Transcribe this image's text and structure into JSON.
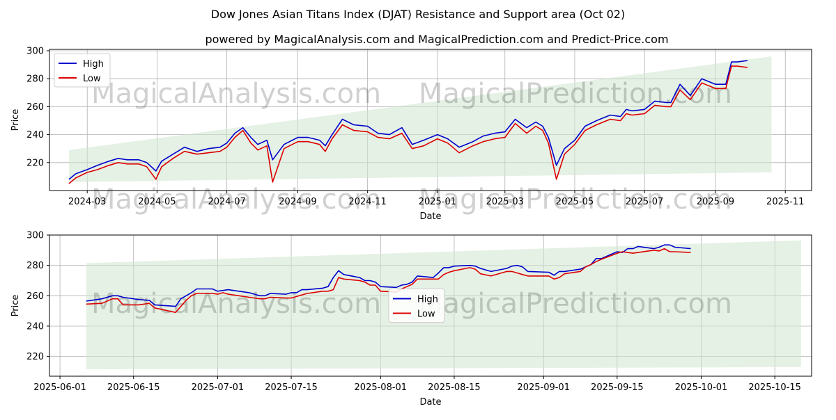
{
  "title": "Dow Jones Asian Titans Index (DJAT) Resistance and Support area (Oct 02)",
  "subtitle": "powered by MagicalAnalysis.com and MagicalPrediction.com and Predict-Price.com",
  "watermarks": [
    "MagicalAnalysis.com",
    "MagicalPrediction.com"
  ],
  "colors": {
    "high": "#0000cc",
    "low": "#dd0000",
    "band": "#cfe6cf",
    "grid": "#b0b0b0"
  },
  "chart_data": [
    {
      "type": "line",
      "xlabel": "Date",
      "ylabel": "Price",
      "x_ticks": [
        "2024-03",
        "2024-05",
        "2024-07",
        "2024-09",
        "2024-11",
        "2025-01",
        "2025-03",
        "2025-05",
        "2025-07",
        "2025-09",
        "2025-11"
      ],
      "x_range": [
        "2024-01-28",
        "2025-11-24"
      ],
      "y_ticks": [
        220,
        240,
        260,
        280,
        300
      ],
      "ylim": [
        200,
        301
      ],
      "grid": true,
      "legend": "top-left",
      "band": {
        "x": [
          "2024-02-14",
          "2025-10-20"
        ],
        "upper": [
          229,
          296
        ],
        "lower": [
          206,
          213
        ]
      },
      "x": [
        "2024-02-14",
        "2024-02-20",
        "2024-03-01",
        "2024-03-10",
        "2024-03-20",
        "2024-03-28",
        "2024-04-05",
        "2024-04-15",
        "2024-04-22",
        "2024-04-30",
        "2024-05-05",
        "2024-05-15",
        "2024-05-25",
        "2024-06-05",
        "2024-06-15",
        "2024-06-25",
        "2024-07-01",
        "2024-07-08",
        "2024-07-15",
        "2024-07-22",
        "2024-07-28",
        "2024-08-05",
        "2024-08-10",
        "2024-08-20",
        "2024-09-01",
        "2024-09-10",
        "2024-09-20",
        "2024-09-25",
        "2024-10-01",
        "2024-10-10",
        "2024-10-20",
        "2024-11-01",
        "2024-11-10",
        "2024-11-20",
        "2024-12-01",
        "2024-12-10",
        "2024-12-20",
        "2025-01-01",
        "2025-01-10",
        "2025-01-20",
        "2025-02-01",
        "2025-02-10",
        "2025-02-20",
        "2025-03-01",
        "2025-03-10",
        "2025-03-20",
        "2025-03-28",
        "2025-04-03",
        "2025-04-08",
        "2025-04-15",
        "2025-04-22",
        "2025-05-01",
        "2025-05-10",
        "2025-05-20",
        "2025-06-01",
        "2025-06-10",
        "2025-06-15",
        "2025-06-20",
        "2025-07-01",
        "2025-07-10",
        "2025-07-20",
        "2025-07-24",
        "2025-08-01",
        "2025-08-10",
        "2025-08-20",
        "2025-09-01",
        "2025-09-10",
        "2025-09-15",
        "2025-09-20",
        "2025-09-29"
      ],
      "series": [
        {
          "name": "High",
          "values": [
            208,
            212,
            215,
            218,
            221,
            223,
            222,
            222,
            220,
            214,
            221,
            226,
            231,
            228,
            230,
            231,
            234,
            241,
            245,
            238,
            233,
            236,
            222,
            233,
            238,
            238,
            236,
            232,
            240,
            251,
            247,
            246,
            241,
            240,
            245,
            233,
            236,
            240,
            237,
            231,
            235,
            239,
            241,
            242,
            251,
            245,
            249,
            246,
            238,
            218,
            230,
            236,
            246,
            250,
            254,
            253,
            258,
            257,
            258,
            264,
            263,
            263,
            276,
            268,
            280,
            276,
            276,
            292,
            292,
            293
          ],
          "color": "#0000cc"
        },
        {
          "name": "Low",
          "values": [
            205,
            209,
            213,
            215,
            218,
            220,
            219,
            219,
            217,
            208,
            217,
            223,
            228,
            226,
            227,
            228,
            231,
            238,
            243,
            234,
            229,
            232,
            206,
            230,
            235,
            235,
            233,
            228,
            237,
            247,
            243,
            242,
            238,
            237,
            241,
            230,
            232,
            237,
            234,
            227,
            232,
            235,
            237,
            238,
            248,
            241,
            246,
            243,
            234,
            208,
            226,
            233,
            243,
            247,
            251,
            250,
            255,
            254,
            255,
            261,
            260,
            260,
            272,
            265,
            277,
            273,
            273,
            289,
            289,
            288
          ],
          "color": "#dd0000"
        }
      ]
    },
    {
      "type": "line",
      "xlabel": "Date",
      "ylabel": "Price",
      "x_ticks": [
        "2025-06-01",
        "2025-06-15",
        "2025-07-01",
        "2025-07-15",
        "2025-08-01",
        "2025-08-15",
        "2025-09-01",
        "2025-09-15",
        "2025-10-01",
        "2025-10-15"
      ],
      "x_range": [
        "2025-05-30",
        "2025-10-22"
      ],
      "y_ticks": [
        220,
        240,
        260,
        280,
        300
      ],
      "ylim": [
        207,
        300
      ],
      "grid": true,
      "legend": "center",
      "band": {
        "x": [
          "2025-06-06",
          "2025-10-20"
        ],
        "upper": [
          281.5,
          296.5
        ],
        "lower": [
          211.5,
          213
        ]
      },
      "x": [
        "2025-06-06",
        "2025-06-09",
        "2025-06-11",
        "2025-06-12",
        "2025-06-13",
        "2025-06-16",
        "2025-06-18",
        "2025-06-19",
        "2025-06-23",
        "2025-06-24",
        "2025-06-25",
        "2025-06-26",
        "2025-06-27",
        "2025-06-30",
        "2025-07-01",
        "2025-07-02",
        "2025-07-03",
        "2025-07-07",
        "2025-07-09",
        "2025-07-10",
        "2025-07-11",
        "2025-07-14",
        "2025-07-15",
        "2025-07-16",
        "2025-07-17",
        "2025-07-18",
        "2025-07-21",
        "2025-07-22",
        "2025-07-23",
        "2025-07-24",
        "2025-07-25",
        "2025-07-28",
        "2025-07-29",
        "2025-07-30",
        "2025-07-31",
        "2025-08-01",
        "2025-08-04",
        "2025-08-05",
        "2025-08-06",
        "2025-08-07",
        "2025-08-08",
        "2025-08-11",
        "2025-08-12",
        "2025-08-13",
        "2025-08-14",
        "2025-08-15",
        "2025-08-18",
        "2025-08-19",
        "2025-08-20",
        "2025-08-22",
        "2025-08-25",
        "2025-08-26",
        "2025-08-27",
        "2025-08-28",
        "2025-08-29",
        "2025-09-02",
        "2025-09-03",
        "2025-09-04",
        "2025-09-05",
        "2025-09-08",
        "2025-09-09",
        "2025-09-10",
        "2025-09-11",
        "2025-09-12",
        "2025-09-15",
        "2025-09-16",
        "2025-09-17",
        "2025-09-18",
        "2025-09-19",
        "2025-09-22",
        "2025-09-23",
        "2025-09-24",
        "2025-09-25",
        "2025-09-26",
        "2025-09-29"
      ],
      "series": [
        {
          "name": "High",
          "values": [
            256.5,
            258,
            260,
            260,
            259,
            257.5,
            257,
            254,
            253,
            258,
            260,
            262,
            264.5,
            264.5,
            263,
            263.5,
            264,
            262,
            260,
            260,
            261.5,
            261,
            262,
            262,
            264,
            264,
            265,
            266,
            272,
            276.5,
            274,
            272,
            270,
            270,
            269,
            266,
            265.5,
            267,
            267.5,
            269,
            273,
            272,
            275,
            278.5,
            278.5,
            279.5,
            280,
            279.5,
            278,
            276,
            278,
            279.5,
            280,
            279,
            276,
            275.5,
            273.5,
            276,
            276,
            277.5,
            279,
            280.5,
            284.5,
            284.5,
            289,
            288.5,
            291,
            291,
            292.5,
            291,
            292,
            293.5,
            293.5,
            292,
            291
          ],
          "color": "#0000cc"
        },
        {
          "name": "Low",
          "values": [
            254.5,
            255,
            258,
            258,
            254,
            254,
            255,
            252,
            249,
            253,
            257,
            260,
            261.5,
            261.5,
            261,
            262,
            261,
            259,
            258,
            258,
            259,
            258.5,
            258.5,
            259.5,
            260.5,
            261.5,
            263,
            263,
            264,
            272,
            271,
            270,
            269,
            267,
            267,
            263,
            262.5,
            264.5,
            266,
            267.5,
            271,
            271,
            271,
            274,
            275.5,
            276.5,
            278.5,
            277.5,
            274.5,
            273,
            276,
            276,
            275,
            274,
            273,
            273,
            271,
            272,
            274.5,
            276,
            279,
            280.5,
            282.5,
            284,
            288,
            289,
            288.5,
            288,
            288.5,
            290,
            289.5,
            291,
            289,
            289,
            288.5
          ],
          "color": "#dd0000"
        }
      ]
    }
  ]
}
